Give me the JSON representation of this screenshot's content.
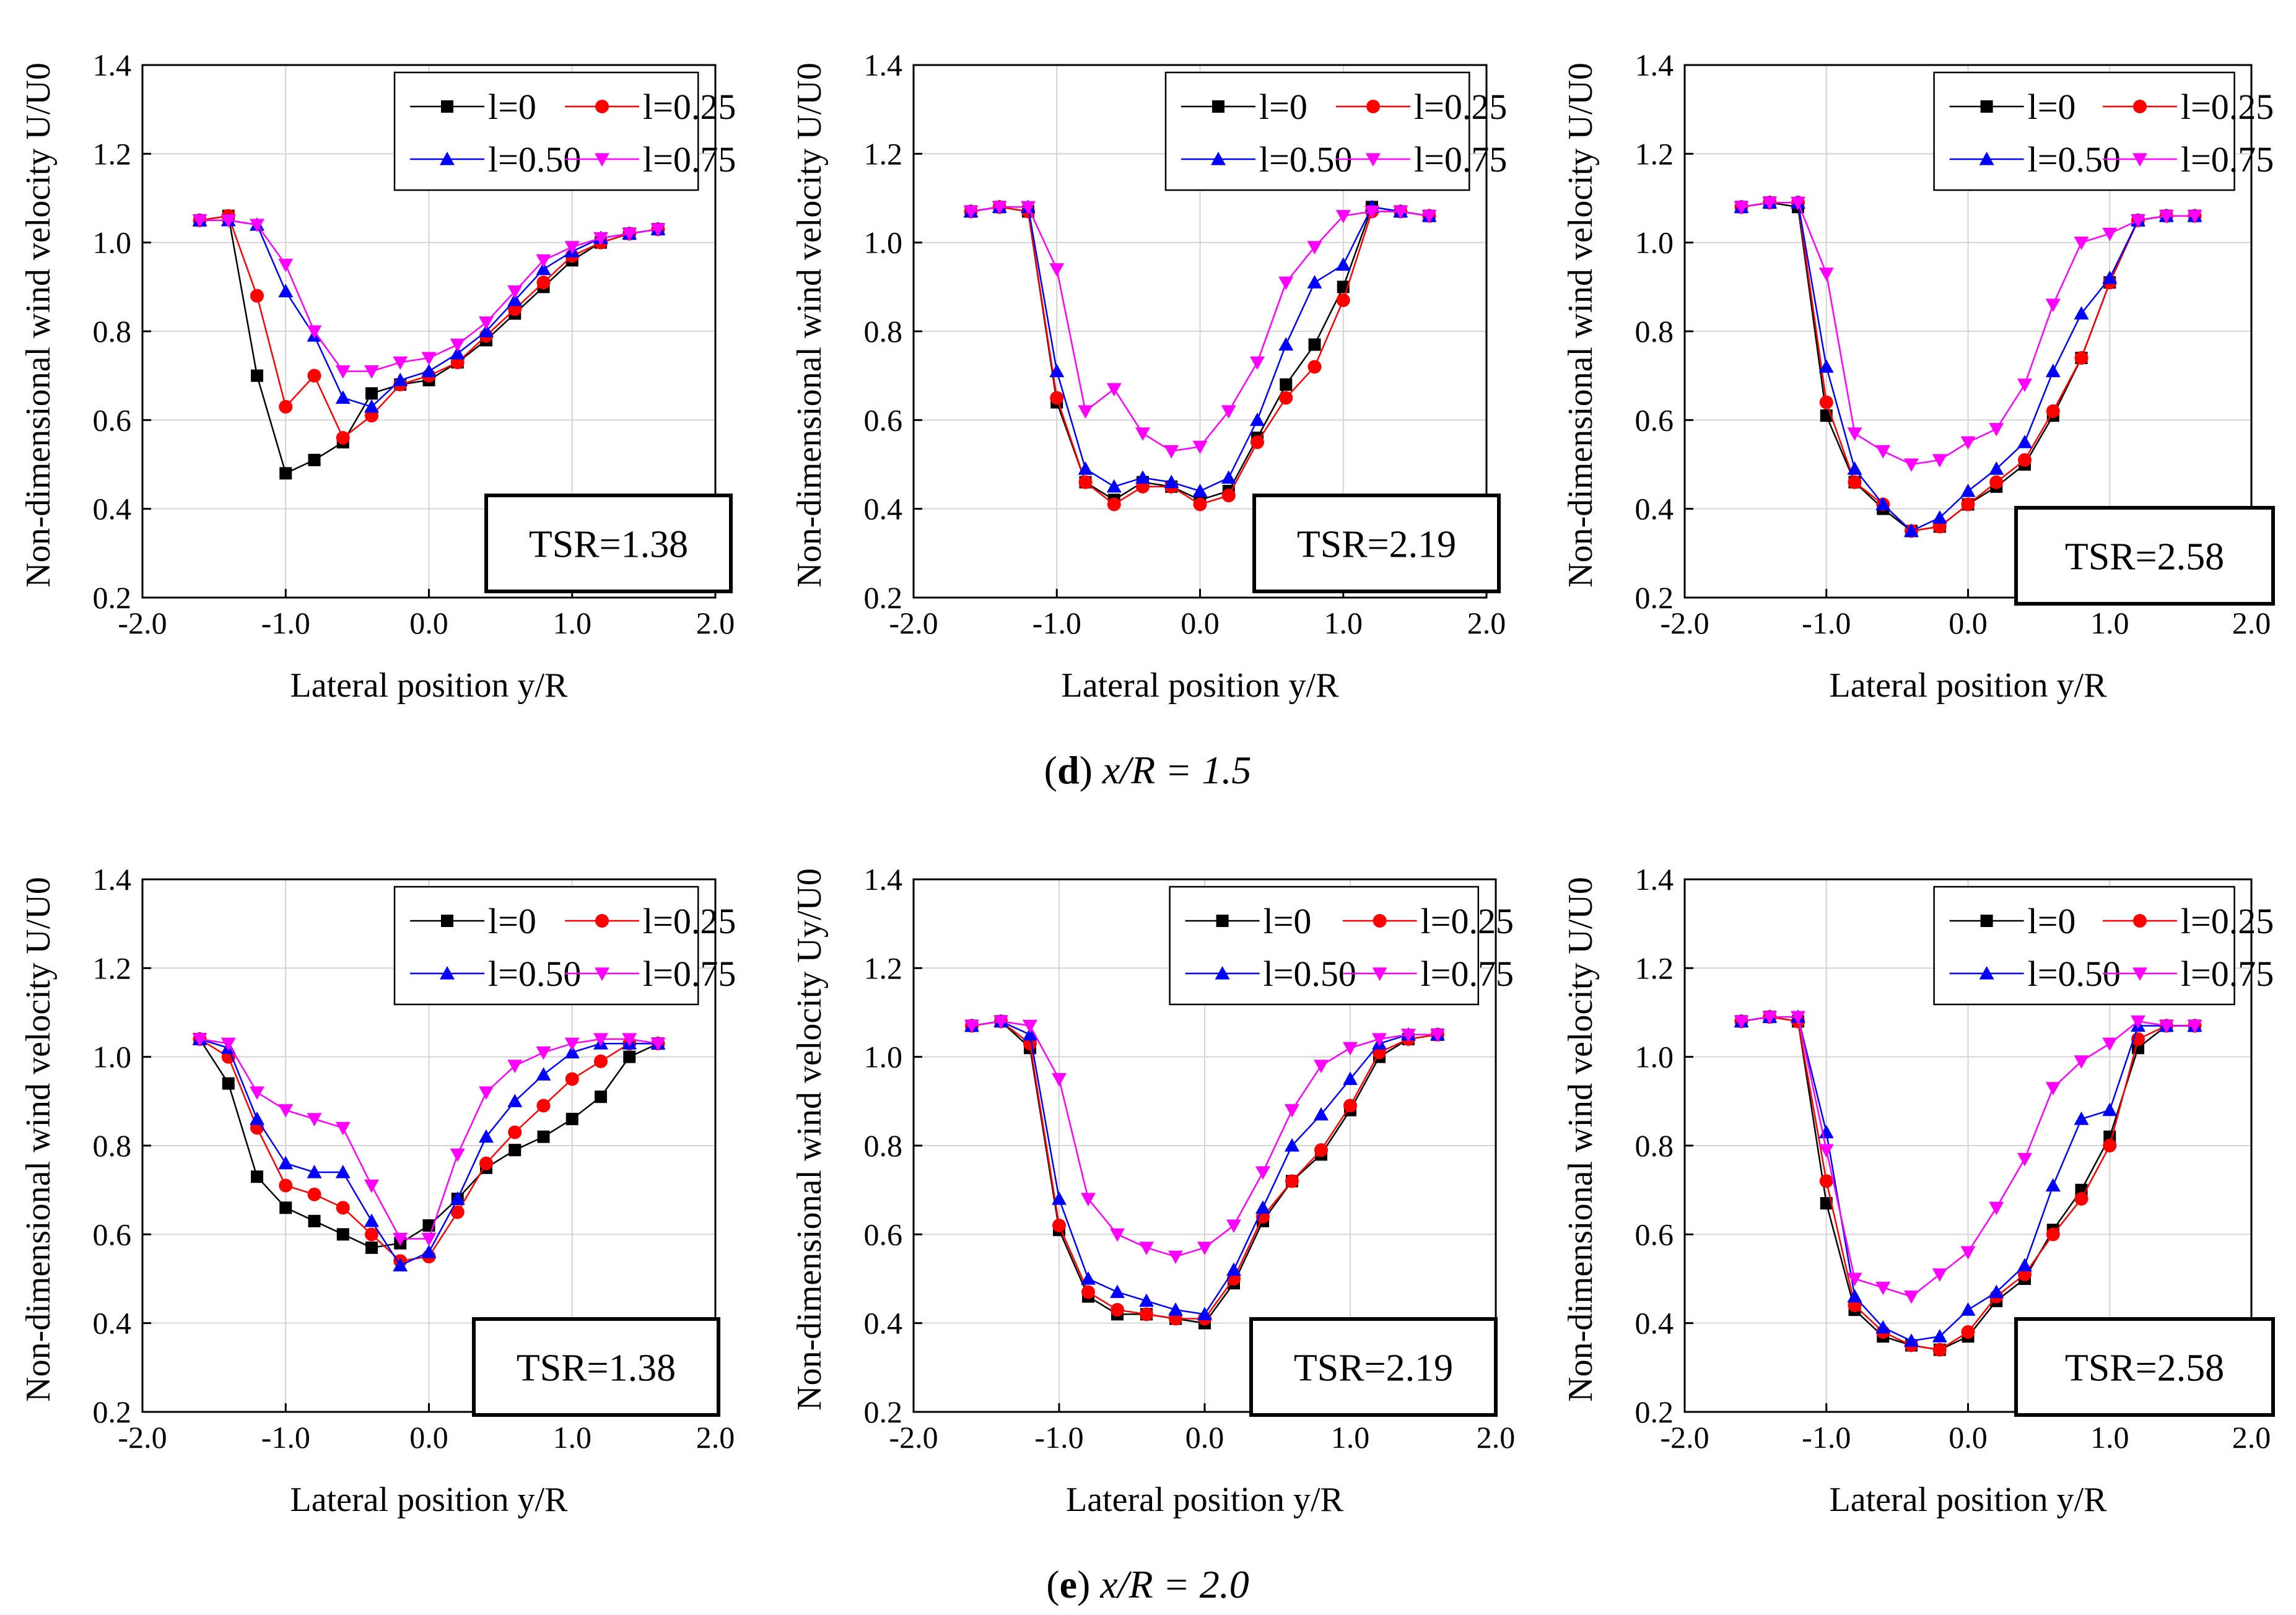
{
  "figure": {
    "caption_d": {
      "letter": "d",
      "text": "x/R = 1.5"
    },
    "caption_e": {
      "letter": "e",
      "text": "x/R = 2.0"
    }
  },
  "colors": {
    "l0": "#000000",
    "l025": "#ff0000",
    "l050": "#0000ff",
    "l075": "#ff00ff"
  },
  "chart_data": [
    {
      "type": "line",
      "title": "TSR=1.38",
      "xlabel": "Lateral position y/R",
      "ylabel": "Non-dimensional wind velocity U/U0",
      "xlim": [
        -2.0,
        2.0
      ],
      "ylim": [
        0.2,
        1.4
      ],
      "xticks": [
        "-2.0",
        "-1.0",
        "0.0",
        "1.0",
        "2.0"
      ],
      "yticks": [
        "0.2",
        "0.4",
        "0.6",
        "0.8",
        "1.0",
        "1.2",
        "1.4"
      ],
      "x": [
        -1.6,
        -1.4,
        -1.2,
        -1.0,
        -0.8,
        -0.6,
        -0.4,
        -0.2,
        0.0,
        0.2,
        0.4,
        0.6,
        0.8,
        1.0,
        1.2,
        1.4,
        1.6
      ],
      "series": [
        {
          "name": "l=0",
          "marker": "square",
          "values": [
            1.05,
            1.06,
            0.7,
            0.48,
            0.51,
            0.55,
            0.66,
            0.68,
            0.69,
            0.73,
            0.78,
            0.84,
            0.9,
            0.96,
            1.0,
            1.02,
            1.03
          ]
        },
        {
          "name": "l=0.25",
          "marker": "circle",
          "values": [
            1.05,
            1.06,
            0.88,
            0.63,
            0.7,
            0.56,
            0.61,
            0.68,
            0.7,
            0.73,
            0.79,
            0.85,
            0.91,
            0.97,
            1.0,
            1.02,
            1.03
          ]
        },
        {
          "name": "l=0.50",
          "marker": "triangle-up",
          "values": [
            1.05,
            1.05,
            1.04,
            0.89,
            0.79,
            0.65,
            0.63,
            0.69,
            0.71,
            0.75,
            0.8,
            0.87,
            0.94,
            0.98,
            1.01,
            1.02,
            1.03
          ]
        },
        {
          "name": "l=0.75",
          "marker": "triangle-down",
          "values": [
            1.05,
            1.05,
            1.04,
            0.95,
            0.8,
            0.71,
            0.71,
            0.73,
            0.74,
            0.77,
            0.82,
            0.89,
            0.96,
            0.99,
            1.01,
            1.02,
            1.03
          ]
        }
      ]
    },
    {
      "type": "line",
      "title": "TSR=2.19",
      "xlabel": "Lateral position y/R",
      "ylabel": "Non-dimensional wind velocity U/U0",
      "xlim": [
        -2.0,
        2.0
      ],
      "ylim": [
        0.2,
        1.4
      ],
      "xticks": [
        "-2.0",
        "-1.0",
        "0.0",
        "1.0",
        "2.0"
      ],
      "yticks": [
        "0.2",
        "0.4",
        "0.6",
        "0.8",
        "1.0",
        "1.2",
        "1.4"
      ],
      "x": [
        -1.6,
        -1.4,
        -1.2,
        -1.0,
        -0.8,
        -0.6,
        -0.4,
        -0.2,
        0.0,
        0.2,
        0.4,
        0.6,
        0.8,
        1.0,
        1.2,
        1.4,
        1.6
      ],
      "series": [
        {
          "name": "l=0",
          "marker": "square",
          "values": [
            1.07,
            1.08,
            1.07,
            0.64,
            0.46,
            0.42,
            0.46,
            0.45,
            0.42,
            0.44,
            0.56,
            0.68,
            0.77,
            0.9,
            1.08,
            1.07,
            1.06
          ]
        },
        {
          "name": "l=0.25",
          "marker": "circle",
          "values": [
            1.07,
            1.08,
            1.07,
            0.65,
            0.46,
            0.41,
            0.45,
            0.45,
            0.41,
            0.43,
            0.55,
            0.65,
            0.72,
            0.87,
            1.07,
            1.07,
            1.06
          ]
        },
        {
          "name": "l=0.50",
          "marker": "triangle-up",
          "values": [
            1.07,
            1.08,
            1.08,
            0.71,
            0.49,
            0.45,
            0.47,
            0.46,
            0.44,
            0.47,
            0.6,
            0.77,
            0.91,
            0.95,
            1.08,
            1.07,
            1.06
          ]
        },
        {
          "name": "l=0.75",
          "marker": "triangle-down",
          "values": [
            1.07,
            1.08,
            1.08,
            0.94,
            0.62,
            0.67,
            0.57,
            0.53,
            0.54,
            0.62,
            0.73,
            0.91,
            0.99,
            1.06,
            1.07,
            1.07,
            1.06
          ]
        }
      ]
    },
    {
      "type": "line",
      "title": "TSR=2.58",
      "xlabel": "Lateral position y/R",
      "ylabel": "Non-dimensional wind velocity U/U0",
      "xlim": [
        -2.0,
        2.0
      ],
      "ylim": [
        0.2,
        1.4
      ],
      "xticks": [
        "-2.0",
        "-1.0",
        "0.0",
        "1.0",
        "2.0"
      ],
      "yticks": [
        "0.2",
        "0.4",
        "0.6",
        "0.8",
        "1.0",
        "1.2",
        "1.4"
      ],
      "x": [
        -1.6,
        -1.4,
        -1.2,
        -1.0,
        -0.8,
        -0.6,
        -0.4,
        -0.2,
        0.0,
        0.2,
        0.4,
        0.6,
        0.8,
        1.0,
        1.2,
        1.4,
        1.6
      ],
      "series": [
        {
          "name": "l=0",
          "marker": "square",
          "values": [
            1.08,
            1.09,
            1.08,
            0.61,
            0.46,
            0.4,
            0.35,
            0.36,
            0.41,
            0.45,
            0.5,
            0.61,
            0.74,
            0.91,
            1.05,
            1.06,
            1.06
          ]
        },
        {
          "name": "l=0.25",
          "marker": "circle",
          "values": [
            1.08,
            1.09,
            1.09,
            0.64,
            0.46,
            0.41,
            0.35,
            0.36,
            0.41,
            0.46,
            0.51,
            0.62,
            0.74,
            0.91,
            1.05,
            1.06,
            1.06
          ]
        },
        {
          "name": "l=0.50",
          "marker": "triangle-up",
          "values": [
            1.08,
            1.09,
            1.09,
            0.72,
            0.49,
            0.41,
            0.35,
            0.38,
            0.44,
            0.49,
            0.55,
            0.71,
            0.84,
            0.92,
            1.05,
            1.06,
            1.06
          ]
        },
        {
          "name": "l=0.75",
          "marker": "triangle-down",
          "values": [
            1.08,
            1.09,
            1.09,
            0.93,
            0.57,
            0.53,
            0.5,
            0.51,
            0.55,
            0.58,
            0.68,
            0.86,
            1.0,
            1.02,
            1.05,
            1.06,
            1.06
          ]
        }
      ]
    },
    {
      "type": "line",
      "title": "TSR=1.38",
      "xlabel": "Lateral position y/R",
      "ylabel": "Non-dimensional wind velocity U/U0",
      "xlim": [
        -2.0,
        2.0
      ],
      "ylim": [
        0.2,
        1.4
      ],
      "xticks": [
        "-2.0",
        "-1.0",
        "0.0",
        "1.0",
        "2.0"
      ],
      "yticks": [
        "0.2",
        "0.4",
        "0.6",
        "0.8",
        "1.0",
        "1.2",
        "1.4"
      ],
      "x": [
        -1.6,
        -1.4,
        -1.2,
        -1.0,
        -0.8,
        -0.6,
        -0.4,
        -0.2,
        0.0,
        0.2,
        0.4,
        0.6,
        0.8,
        1.0,
        1.2,
        1.4,
        1.6
      ],
      "series": [
        {
          "name": "l=0",
          "marker": "square",
          "values": [
            1.04,
            0.94,
            0.73,
            0.66,
            0.63,
            0.6,
            0.57,
            0.58,
            0.62,
            0.68,
            0.75,
            0.79,
            0.82,
            0.86,
            0.91,
            1.0,
            1.03
          ]
        },
        {
          "name": "l=0.25",
          "marker": "circle",
          "values": [
            1.04,
            1.0,
            0.84,
            0.71,
            0.69,
            0.66,
            0.6,
            0.54,
            0.55,
            0.65,
            0.76,
            0.83,
            0.89,
            0.95,
            0.99,
            1.03,
            1.03
          ]
        },
        {
          "name": "l=0.50",
          "marker": "triangle-up",
          "values": [
            1.04,
            1.02,
            0.86,
            0.76,
            0.74,
            0.74,
            0.63,
            0.53,
            0.56,
            0.68,
            0.82,
            0.9,
            0.96,
            1.01,
            1.03,
            1.03,
            1.03
          ]
        },
        {
          "name": "l=0.75",
          "marker": "triangle-down",
          "values": [
            1.04,
            1.03,
            0.92,
            0.88,
            0.86,
            0.84,
            0.71,
            0.59,
            0.59,
            0.78,
            0.92,
            0.98,
            1.01,
            1.03,
            1.04,
            1.04,
            1.03
          ]
        }
      ]
    },
    {
      "type": "line",
      "title": "TSR=2.19",
      "xlabel": "Lateral position y/R",
      "ylabel": "Non-dimensional wind velocity Uy/U0",
      "xlim": [
        -2.0,
        2.0
      ],
      "ylim": [
        0.2,
        1.4
      ],
      "xticks": [
        "-2.0",
        "-1.0",
        "0.0",
        "1.0",
        "2.0"
      ],
      "yticks": [
        "0.2",
        "0.4",
        "0.6",
        "0.8",
        "1.0",
        "1.2",
        "1.4"
      ],
      "x": [
        -1.6,
        -1.4,
        -1.2,
        -1.0,
        -0.8,
        -0.6,
        -0.4,
        -0.2,
        0.0,
        0.2,
        0.4,
        0.6,
        0.8,
        1.0,
        1.2,
        1.4,
        1.6
      ],
      "series": [
        {
          "name": "l=0",
          "marker": "square",
          "values": [
            1.07,
            1.08,
            1.02,
            0.61,
            0.46,
            0.42,
            0.42,
            0.41,
            0.4,
            0.49,
            0.63,
            0.72,
            0.78,
            0.88,
            1.0,
            1.04,
            1.05
          ]
        },
        {
          "name": "l=0.25",
          "marker": "circle",
          "values": [
            1.07,
            1.08,
            1.03,
            0.62,
            0.47,
            0.43,
            0.42,
            0.41,
            0.41,
            0.5,
            0.64,
            0.72,
            0.79,
            0.89,
            1.01,
            1.04,
            1.05
          ]
        },
        {
          "name": "l=0.50",
          "marker": "triangle-up",
          "values": [
            1.07,
            1.08,
            1.05,
            0.68,
            0.5,
            0.47,
            0.45,
            0.43,
            0.42,
            0.52,
            0.66,
            0.8,
            0.87,
            0.95,
            1.03,
            1.05,
            1.05
          ]
        },
        {
          "name": "l=0.75",
          "marker": "triangle-down",
          "values": [
            1.07,
            1.08,
            1.07,
            0.95,
            0.68,
            0.6,
            0.57,
            0.55,
            0.57,
            0.62,
            0.74,
            0.88,
            0.98,
            1.02,
            1.04,
            1.05,
            1.05
          ]
        }
      ]
    },
    {
      "type": "line",
      "title": "TSR=2.58",
      "xlabel": "Lateral position y/R",
      "ylabel": "Non-dimensional wind velocity U/U0",
      "xlim": [
        -2.0,
        2.0
      ],
      "ylim": [
        0.2,
        1.4
      ],
      "xticks": [
        "-2.0",
        "-1.0",
        "0.0",
        "1.0",
        "2.0"
      ],
      "yticks": [
        "0.2",
        "0.4",
        "0.6",
        "0.8",
        "1.0",
        "1.2",
        "1.4"
      ],
      "x": [
        -1.6,
        -1.4,
        -1.2,
        -1.0,
        -0.8,
        -0.6,
        -0.4,
        -0.2,
        0.0,
        0.2,
        0.4,
        0.6,
        0.8,
        1.0,
        1.2,
        1.4,
        1.6
      ],
      "series": [
        {
          "name": "l=0",
          "marker": "square",
          "values": [
            1.08,
            1.09,
            1.08,
            0.67,
            0.43,
            0.37,
            0.35,
            0.34,
            0.37,
            0.45,
            0.5,
            0.61,
            0.7,
            0.82,
            1.02,
            1.07,
            1.07
          ]
        },
        {
          "name": "l=0.25",
          "marker": "circle",
          "values": [
            1.08,
            1.09,
            1.08,
            0.72,
            0.44,
            0.38,
            0.35,
            0.34,
            0.38,
            0.46,
            0.51,
            0.6,
            0.68,
            0.8,
            1.04,
            1.07,
            1.07
          ]
        },
        {
          "name": "l=0.50",
          "marker": "triangle-up",
          "values": [
            1.08,
            1.09,
            1.09,
            0.83,
            0.46,
            0.39,
            0.36,
            0.37,
            0.43,
            0.47,
            0.53,
            0.71,
            0.86,
            0.88,
            1.07,
            1.07,
            1.07
          ]
        },
        {
          "name": "l=0.75",
          "marker": "triangle-down",
          "values": [
            1.08,
            1.09,
            1.09,
            0.79,
            0.5,
            0.48,
            0.46,
            0.51,
            0.56,
            0.66,
            0.77,
            0.93,
            0.99,
            1.03,
            1.08,
            1.07,
            1.07
          ]
        }
      ]
    }
  ]
}
